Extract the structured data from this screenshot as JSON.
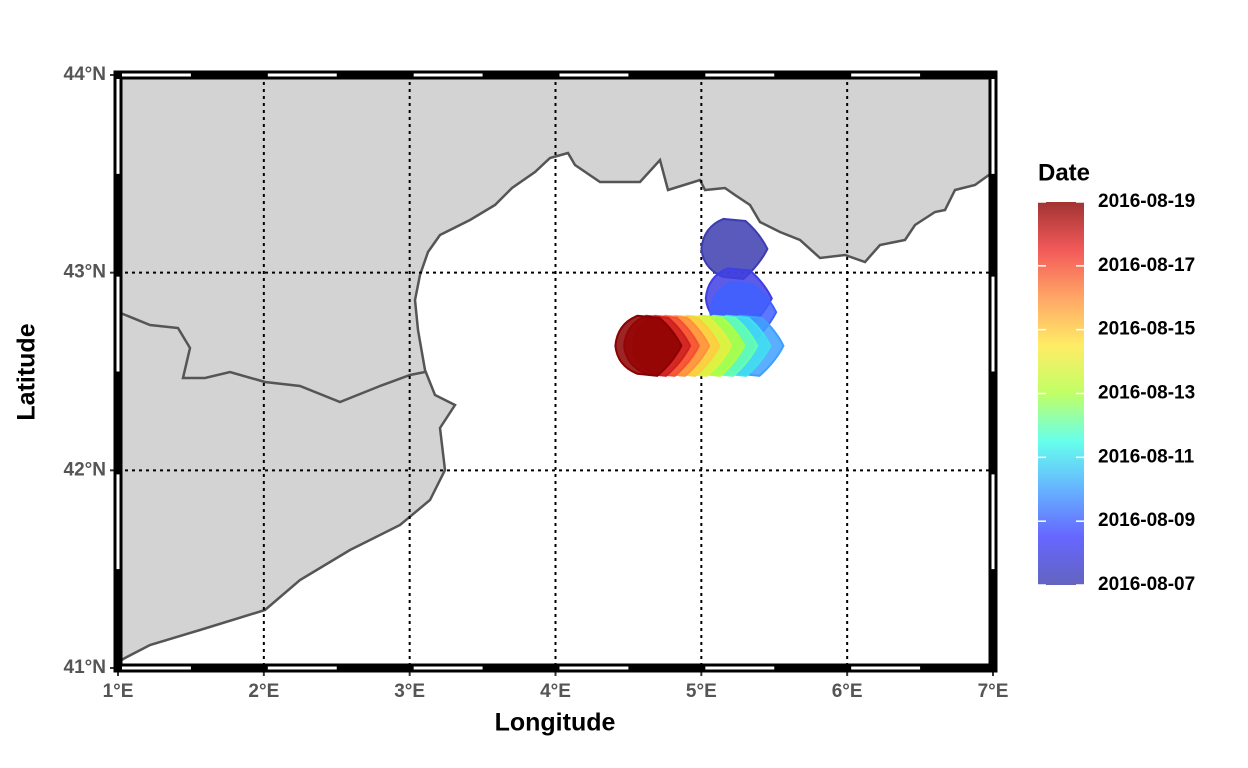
{
  "chart_data": {
    "type": "map",
    "xlabel": "Longitude",
    "ylabel": "Latitude",
    "xlim": [
      1,
      7
    ],
    "ylim": [
      41,
      44
    ],
    "xticks": [
      {
        "value": 1,
        "label": "1°E"
      },
      {
        "value": 2,
        "label": "2°E"
      },
      {
        "value": 3,
        "label": "3°E"
      },
      {
        "value": 4,
        "label": "4°E"
      },
      {
        "value": 5,
        "label": "5°E"
      },
      {
        "value": 6,
        "label": "6°E"
      },
      {
        "value": 7,
        "label": "7°E"
      }
    ],
    "yticks": [
      {
        "value": 41,
        "label": "41°N"
      },
      {
        "value": 42,
        "label": "42°N"
      },
      {
        "value": 43,
        "label": "43°N"
      },
      {
        "value": 44,
        "label": "44°N"
      }
    ],
    "grid": true,
    "legend_title": "Date",
    "colorbar_ticks": [
      "2016-08-07",
      "2016-08-09",
      "2016-08-11",
      "2016-08-13",
      "2016-08-15",
      "2016-08-17",
      "2016-08-19"
    ],
    "colorscale": [
      "#3d3db0",
      "#4040ff",
      "#40a0ff",
      "#40ffe8",
      "#b0ff40",
      "#ffe840",
      "#ff9040",
      "#f03030",
      "#8b0000"
    ],
    "points": [
      {
        "date": "2016-08-07",
        "lon": 5.22,
        "lat": 43.12
      },
      {
        "date": "2016-08-08",
        "lon": 5.25,
        "lat": 42.87
      },
      {
        "date": "2016-08-09",
        "lon": 5.28,
        "lat": 42.8
      },
      {
        "date": "2016-08-10",
        "lon": 5.33,
        "lat": 42.63
      },
      {
        "date": "2016-08-11",
        "lon": 5.24,
        "lat": 42.63
      },
      {
        "date": "2016-08-12",
        "lon": 5.15,
        "lat": 42.63
      },
      {
        "date": "2016-08-13",
        "lon": 5.06,
        "lat": 42.63
      },
      {
        "date": "2016-08-14",
        "lon": 4.97,
        "lat": 42.63
      },
      {
        "date": "2016-08-15",
        "lon": 4.89,
        "lat": 42.63
      },
      {
        "date": "2016-08-16",
        "lon": 4.82,
        "lat": 42.63
      },
      {
        "date": "2016-08-17",
        "lon": 4.75,
        "lat": 42.63
      },
      {
        "date": "2016-08-18",
        "lon": 4.69,
        "lat": 42.63
      },
      {
        "date": "2016-08-19",
        "lon": 4.63,
        "lat": 42.63
      }
    ]
  }
}
